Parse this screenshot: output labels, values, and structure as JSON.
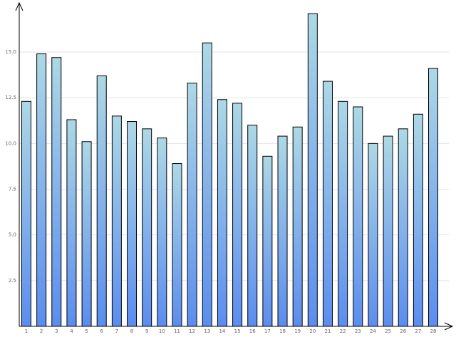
{
  "chart_data": {
    "type": "bar",
    "categories": [
      "1",
      "2",
      "3",
      "4",
      "5",
      "6",
      "7",
      "8",
      "9",
      "10",
      "11",
      "12",
      "13",
      "14",
      "15",
      "16",
      "17",
      "18",
      "19",
      "20",
      "21",
      "22",
      "23",
      "24",
      "25",
      "26",
      "27",
      "28"
    ],
    "values": [
      12.3,
      14.9,
      14.7,
      11.3,
      10.1,
      13.7,
      11.5,
      11.2,
      10.8,
      10.3,
      8.9,
      13.3,
      15.5,
      12.4,
      12.2,
      11.0,
      9.3,
      10.4,
      10.9,
      17.1,
      13.4,
      12.3,
      12.0,
      10.0,
      10.4,
      10.8,
      11.6,
      14.1
    ],
    "gradient": [
      "#add8e6",
      "#5b8def"
    ],
    "ylim": [
      0,
      17.65
    ],
    "yticks": [
      2.5,
      {
        "value": 5,
        "label": "5.0"
      },
      7.5,
      {
        "value": 10,
        "label": "10.0"
      },
      12.5,
      {
        "value": 15,
        "label": "15.0"
      }
    ],
    "grid": true
  }
}
